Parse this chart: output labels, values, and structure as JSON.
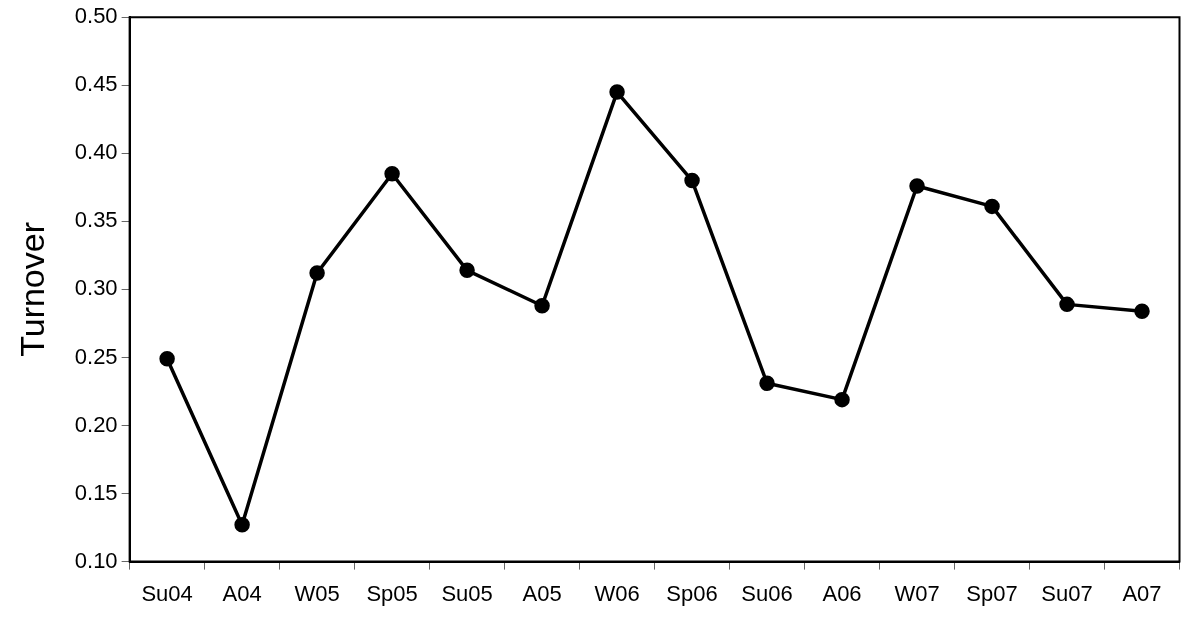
{
  "chart_data": {
    "type": "line",
    "ylabel": "Turnover",
    "categories": [
      "Su04",
      "A04",
      "W05",
      "Sp05",
      "Su05",
      "A05",
      "W06",
      "Sp06",
      "Su06",
      "A06",
      "W07",
      "Sp07",
      "Su07",
      "A07"
    ],
    "series": [
      {
        "color": "#000000",
        "values": [
          0.249,
          0.127,
          0.312,
          0.385,
          0.314,
          0.288,
          0.445,
          0.38,
          0.231,
          0.219,
          0.376,
          0.361,
          0.289,
          0.284
        ]
      }
    ],
    "ylim": [
      0.1,
      0.5
    ],
    "yticks": [
      {
        "value": 0.1,
        "label": "0.10"
      },
      {
        "value": 0.15,
        "label": "0.15"
      },
      {
        "value": 0.2,
        "label": "0.20"
      },
      {
        "value": 0.25,
        "label": "0.25"
      },
      {
        "value": 0.3,
        "label": "0.30"
      },
      {
        "value": 0.35,
        "label": "0.35"
      },
      {
        "value": 0.4,
        "label": "0.40"
      },
      {
        "value": 0.45,
        "label": "0.45"
      },
      {
        "value": 0.5,
        "label": "0.50"
      }
    ],
    "grid": false,
    "legend": false,
    "marker": "circle",
    "line_style": "solid"
  }
}
